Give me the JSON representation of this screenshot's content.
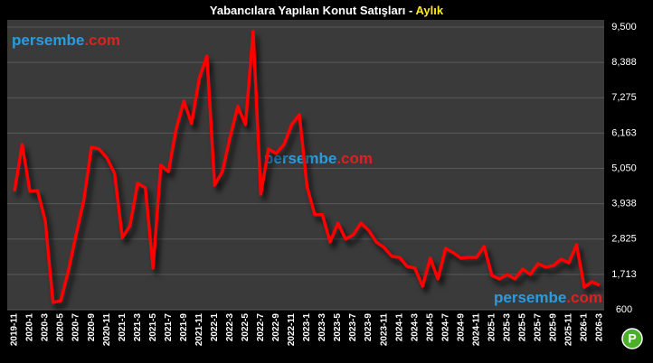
{
  "chart_data": {
    "type": "line",
    "title": "Yabancılara Yapılan Konut Satışları -",
    "title_highlight": "Aylık",
    "watermark": {
      "name": "persembe",
      "tld": ".com"
    },
    "logo": "P",
    "categories": [
      "2019-11",
      null,
      "2020-1",
      null,
      "2020-3",
      null,
      "2020-5",
      null,
      "2020-7",
      null,
      "2020-9",
      null,
      "2020-11",
      null,
      "2021-1",
      null,
      "2021-3",
      null,
      "2021-5",
      null,
      "2021-7",
      null,
      "2021-9",
      null,
      "2021-11",
      null,
      "2022-1",
      null,
      "2022-3",
      null,
      "2022-5",
      null,
      "2022-7",
      null,
      "2022-9",
      null,
      "2022-11",
      null,
      "2023-1",
      null,
      "2023-3",
      null,
      "2023-5",
      null,
      "2023-7",
      null,
      "2023-9",
      null,
      "2023-11",
      null,
      "2024-1",
      null,
      "2024-3",
      null,
      "2024-5",
      null,
      "2024-7",
      null,
      "2024-9",
      null,
      "2024-11",
      null,
      "2025-1",
      null,
      "2025-3",
      null,
      "2025-5",
      null,
      "2025-7",
      null,
      "2025-9",
      null,
      "2025-11",
      null,
      "2026-1",
      null,
      "2026-3"
    ],
    "series": [
      {
        "name": "Aylık",
        "color": "#ff0000",
        "values": [
          4330,
          5800,
          4330,
          4350,
          3390,
          830,
          880,
          1820,
          2960,
          4040,
          5720,
          5660,
          5380,
          4890,
          2870,
          3240,
          4580,
          4440,
          1910,
          5150,
          4950,
          6290,
          7170,
          6460,
          7880,
          8590,
          4520,
          4950,
          6030,
          7000,
          6430,
          9360,
          4240,
          5660,
          5520,
          5800,
          6430,
          6740,
          4470,
          3590,
          3590,
          2730,
          3330,
          2820,
          2960,
          3330,
          3100,
          2730,
          2560,
          2280,
          2250,
          1960,
          1910,
          1340,
          2220,
          1570,
          2530,
          2390,
          2220,
          2250,
          2250,
          2590,
          1680,
          1570,
          1710,
          1570,
          1880,
          1710,
          2050,
          1940,
          1990,
          2190,
          2080,
          2650,
          1310,
          1480,
          1370
        ]
      }
    ],
    "ylim": [
      600,
      9500
    ],
    "yticks": [
      600,
      {
        "value": 1713,
        "label": "1,713"
      },
      {
        "value": 2825,
        "label": "2,825"
      },
      {
        "value": 3938,
        "label": "3,938"
      },
      {
        "value": 5050,
        "label": "5,050"
      },
      {
        "value": 6163,
        "label": "6,163"
      },
      {
        "value": 7275,
        "label": "7,275"
      },
      {
        "value": 8388,
        "label": "8,388"
      },
      {
        "value": 9500,
        "label": "9,500"
      }
    ],
    "grid": true
  }
}
